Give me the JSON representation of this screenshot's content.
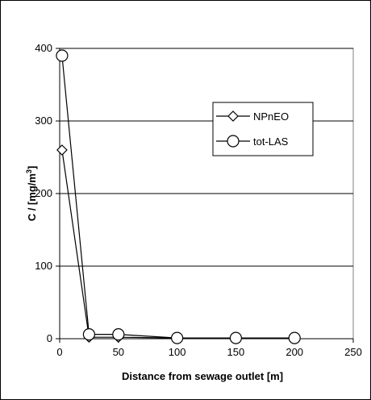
{
  "chart_data": {
    "type": "line",
    "title": "",
    "xlabel": "Distance from sewage outlet [m]",
    "ylabel_main": "C / [mg/m",
    "ylabel_sup": "3",
    "ylabel_tail": "]",
    "xlim": [
      0,
      250
    ],
    "ylim": [
      0,
      400
    ],
    "x_ticks": [
      "0",
      "50",
      "100",
      "150",
      "200",
      "250"
    ],
    "y_ticks": [
      "0",
      "100",
      "200",
      "300",
      "400"
    ],
    "grid": "horizontal",
    "legend_position": "right",
    "series": [
      {
        "name": "NPnEO",
        "marker": "diamond",
        "color": "#000000",
        "x": [
          2,
          25,
          50,
          100,
          150,
          200
        ],
        "y": [
          260,
          2,
          2,
          1,
          1,
          1
        ]
      },
      {
        "name": "tot-LAS",
        "marker": "circle",
        "color": "#000000",
        "x": [
          2,
          25,
          50,
          100,
          150,
          200
        ],
        "y": [
          390,
          6,
          6,
          1,
          1,
          1
        ]
      }
    ]
  }
}
